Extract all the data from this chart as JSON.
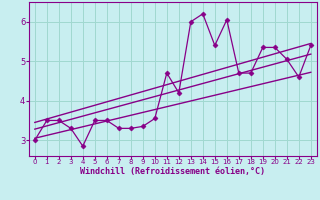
{
  "title": "",
  "xlabel": "Windchill (Refroidissement éolien,°C)",
  "bg_color": "#c8eef0",
  "line_color": "#880088",
  "grid_color": "#a0d8d0",
  "x_data": [
    0,
    1,
    2,
    3,
    4,
    5,
    6,
    7,
    8,
    9,
    10,
    11,
    12,
    13,
    14,
    15,
    16,
    17,
    18,
    19,
    20,
    21,
    22,
    23
  ],
  "y_data": [
    3.0,
    3.5,
    3.5,
    3.3,
    2.85,
    3.5,
    3.5,
    3.3,
    3.3,
    3.35,
    3.55,
    4.7,
    4.2,
    6.0,
    6.2,
    5.4,
    6.05,
    4.7,
    4.7,
    5.35,
    5.35,
    5.05,
    4.6,
    5.4
  ],
  "regression_lines": [
    {
      "x": [
        0,
        23
      ],
      "y": [
        3.05,
        4.72
      ]
    },
    {
      "x": [
        0,
        23
      ],
      "y": [
        3.28,
        5.18
      ]
    },
    {
      "x": [
        0,
        23
      ],
      "y": [
        3.45,
        5.45
      ]
    }
  ],
  "ylim": [
    2.6,
    6.5
  ],
  "xlim": [
    -0.5,
    23.5
  ],
  "yticks": [
    3,
    4,
    5,
    6
  ],
  "xticks": [
    0,
    1,
    2,
    3,
    4,
    5,
    6,
    7,
    8,
    9,
    10,
    11,
    12,
    13,
    14,
    15,
    16,
    17,
    18,
    19,
    20,
    21,
    22,
    23
  ],
  "tick_fontsize_x": 5,
  "tick_fontsize_y": 6,
  "xlabel_fontsize": 6
}
